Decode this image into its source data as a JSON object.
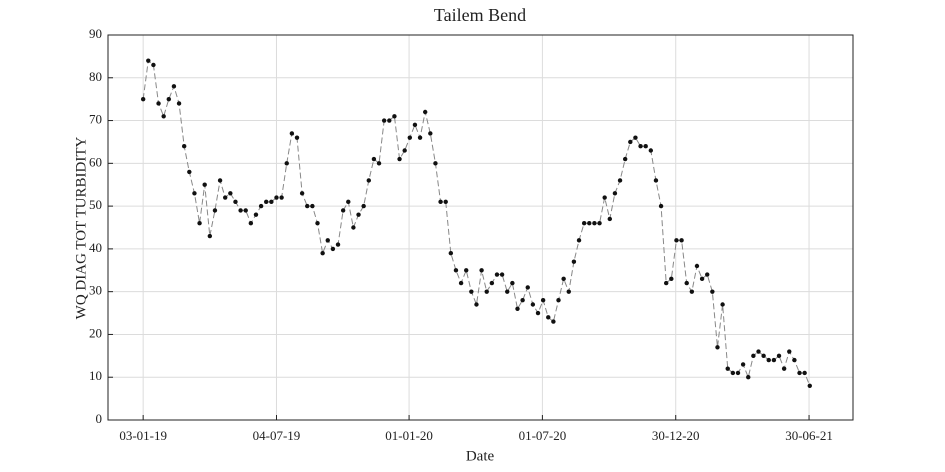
{
  "chart_data": {
    "type": "line",
    "title": "Tailem Bend",
    "x_label": "Date",
    "y_label": "WQ DIAG TOT TURBIDITY",
    "x": [
      "2019-01-03",
      "2019-01-10",
      "2019-01-17",
      "2019-01-24",
      "2019-01-31",
      "2019-02-07",
      "2019-02-14",
      "2019-02-21",
      "2019-02-28",
      "2019-03-07",
      "2019-03-14",
      "2019-03-21",
      "2019-03-28",
      "2019-04-04",
      "2019-04-11",
      "2019-04-18",
      "2019-04-25",
      "2019-05-02",
      "2019-05-09",
      "2019-05-16",
      "2019-05-23",
      "2019-05-30",
      "2019-06-06",
      "2019-06-13",
      "2019-06-20",
      "2019-06-27",
      "2019-07-04",
      "2019-07-11",
      "2019-07-18",
      "2019-07-25",
      "2019-08-01",
      "2019-08-08",
      "2019-08-15",
      "2019-08-22",
      "2019-08-29",
      "2019-09-05",
      "2019-09-12",
      "2019-09-19",
      "2019-09-26",
      "2019-10-03",
      "2019-10-10",
      "2019-10-17",
      "2019-10-24",
      "2019-10-31",
      "2019-11-07",
      "2019-11-14",
      "2019-11-21",
      "2019-11-28",
      "2019-12-05",
      "2019-12-12",
      "2019-12-19",
      "2019-12-26",
      "2020-01-02",
      "2020-01-09",
      "2020-01-16",
      "2020-01-23",
      "2020-01-30",
      "2020-02-06",
      "2020-02-13",
      "2020-02-20",
      "2020-02-27",
      "2020-03-05",
      "2020-03-12",
      "2020-03-19",
      "2020-03-26",
      "2020-04-02",
      "2020-04-09",
      "2020-04-16",
      "2020-04-23",
      "2020-04-30",
      "2020-05-07",
      "2020-05-14",
      "2020-05-21",
      "2020-05-28",
      "2020-06-04",
      "2020-06-11",
      "2020-06-18",
      "2020-06-25",
      "2020-07-02",
      "2020-07-09",
      "2020-07-16",
      "2020-07-23",
      "2020-07-30",
      "2020-08-06",
      "2020-08-13",
      "2020-08-20",
      "2020-08-27",
      "2020-09-03",
      "2020-09-10",
      "2020-09-17",
      "2020-09-24",
      "2020-10-01",
      "2020-10-08",
      "2020-10-15",
      "2020-10-22",
      "2020-10-29",
      "2020-11-05",
      "2020-11-12",
      "2020-11-19",
      "2020-11-26",
      "2020-12-03",
      "2020-12-10",
      "2020-12-17",
      "2020-12-24",
      "2020-12-31",
      "2021-01-07",
      "2021-01-14",
      "2021-01-21",
      "2021-01-28",
      "2021-02-04",
      "2021-02-11",
      "2021-02-18",
      "2021-02-25",
      "2021-03-04",
      "2021-03-11",
      "2021-03-18",
      "2021-03-25",
      "2021-04-01",
      "2021-04-08",
      "2021-04-15",
      "2021-04-22",
      "2021-04-29",
      "2021-05-06",
      "2021-05-13",
      "2021-05-20",
      "2021-05-27",
      "2021-06-03",
      "2021-06-10",
      "2021-06-17",
      "2021-06-24",
      "2021-07-01"
    ],
    "series": [
      {
        "color": "#111111",
        "line_color": "#888888",
        "values": [
          75,
          84,
          83,
          74,
          71,
          75,
          78,
          74,
          64,
          58,
          53,
          46,
          55,
          43,
          49,
          56,
          52,
          53,
          51,
          49,
          49,
          46,
          48,
          50,
          51,
          51,
          52,
          52,
          60,
          67,
          66,
          53,
          50,
          50,
          46,
          39,
          42,
          40,
          41,
          49,
          51,
          45,
          48,
          50,
          56,
          61,
          60,
          70,
          70,
          71,
          61,
          63,
          66,
          69,
          66,
          72,
          67,
          60,
          51,
          51,
          39,
          35,
          32,
          35,
          30,
          27,
          35,
          30,
          32,
          34,
          34,
          30,
          32,
          26,
          28,
          31,
          27,
          25,
          28,
          24,
          23,
          28,
          33,
          30,
          37,
          42,
          46,
          46,
          46,
          46,
          52,
          47,
          53,
          56,
          61,
          65,
          66,
          64,
          64,
          63,
          56,
          50,
          32,
          33,
          42,
          42,
          32,
          30,
          36,
          33,
          34,
          30,
          17,
          27,
          12,
          11,
          11,
          13,
          10,
          15,
          16,
          15,
          14,
          14,
          15,
          12,
          16,
          14,
          11,
          11,
          8
        ]
      }
    ],
    "xlim": [
      "2018-11-16",
      "2021-08-29"
    ],
    "xticks": [
      {
        "value": "2019-01-03",
        "label": "03-01-19"
      },
      {
        "value": "2019-07-04",
        "label": "04-07-19"
      },
      {
        "value": "2020-01-01",
        "label": "01-01-20"
      },
      {
        "value": "2020-07-01",
        "label": "01-07-20"
      },
      {
        "value": "2020-12-30",
        "label": "30-12-20"
      },
      {
        "value": "2021-06-30",
        "label": "30-06-21"
      }
    ],
    "ylim": [
      0,
      90
    ],
    "yticks": [
      0,
      10,
      20,
      30,
      40,
      50,
      60,
      70,
      80,
      90
    ],
    "grid": true
  }
}
